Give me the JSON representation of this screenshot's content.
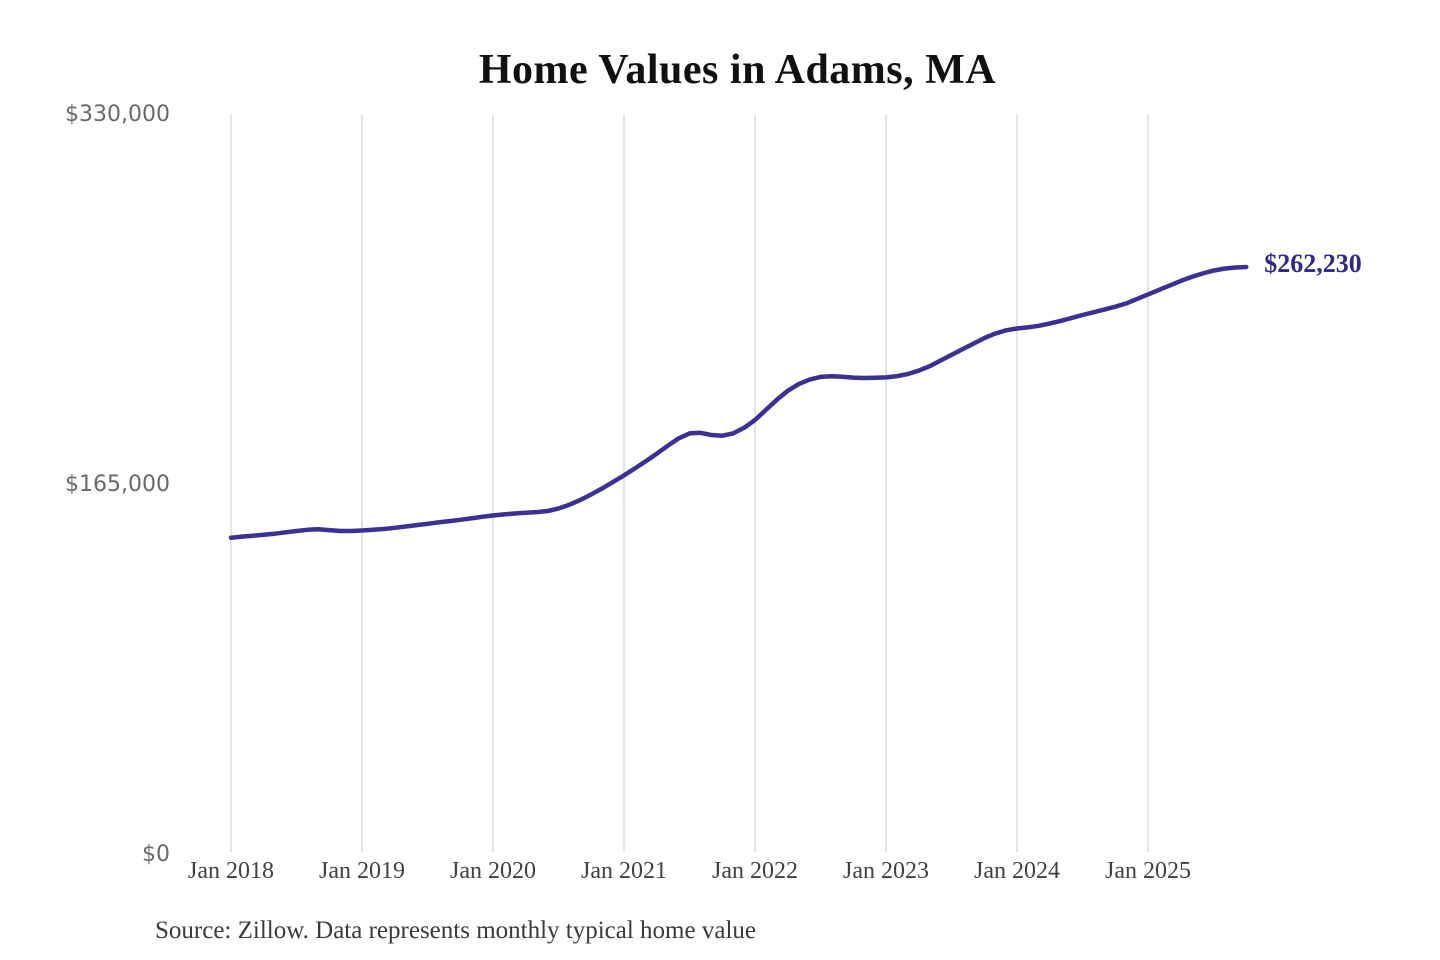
{
  "chart_data": {
    "type": "line",
    "title": "Home Values in Adams, MA",
    "xlabel": "",
    "ylabel": "",
    "ylim": [
      0,
      330000
    ],
    "grid": "vertical-year-lines-only",
    "legend_position": "none",
    "x_unit": "month",
    "x_start": "Jan 2018",
    "x_end": "Oct 2025",
    "x_ticks": [
      {
        "label": "Jan 2018",
        "month_index": 0
      },
      {
        "label": "Jan 2019",
        "month_index": 12
      },
      {
        "label": "Jan 2020",
        "month_index": 24
      },
      {
        "label": "Jan 2021",
        "month_index": 36
      },
      {
        "label": "Jan 2022",
        "month_index": 48
      },
      {
        "label": "Jan 2023",
        "month_index": 60
      },
      {
        "label": "Jan 2024",
        "month_index": 72
      },
      {
        "label": "Jan 2025",
        "month_index": 84
      }
    ],
    "y_ticks": [
      {
        "label": "$0",
        "value": 0
      },
      {
        "label": "$165,000",
        "value": 165000
      },
      {
        "label": "$330,000",
        "value": 330000
      }
    ],
    "series": [
      {
        "name": "Monthly typical home value",
        "color": "#3a3192",
        "values": [
          141500,
          142000,
          142400,
          142800,
          143300,
          143900,
          144500,
          145000,
          145300,
          144900,
          144500,
          144500,
          144700,
          145000,
          145400,
          145900,
          146500,
          147100,
          147700,
          148300,
          148900,
          149500,
          150100,
          150800,
          151400,
          151900,
          152300,
          152600,
          152900,
          153400,
          154500,
          156200,
          158300,
          160800,
          163500,
          166400,
          169300,
          172400,
          175600,
          179000,
          182500,
          185800,
          188000,
          188300,
          187300,
          187000,
          188000,
          190500,
          194000,
          198500,
          203000,
          207000,
          210000,
          212000,
          213200,
          213500,
          213300,
          212900,
          212700,
          212800,
          213000,
          213500,
          214500,
          216000,
          218000,
          220500,
          223000,
          225500,
          228000,
          230500,
          232500,
          234000,
          234800,
          235300,
          236000,
          237000,
          238200,
          239500,
          240800,
          242000,
          243200,
          244500,
          246000,
          248000,
          250000,
          252000,
          254000,
          256000,
          257800,
          259300,
          260600,
          261500,
          262000,
          262230
        ]
      }
    ],
    "end_label": "$262,230",
    "end_label_color": "#2e2b83",
    "gridline_color": "#c9c9c9",
    "source": "Source: Zillow. Data represents monthly typical home value"
  }
}
